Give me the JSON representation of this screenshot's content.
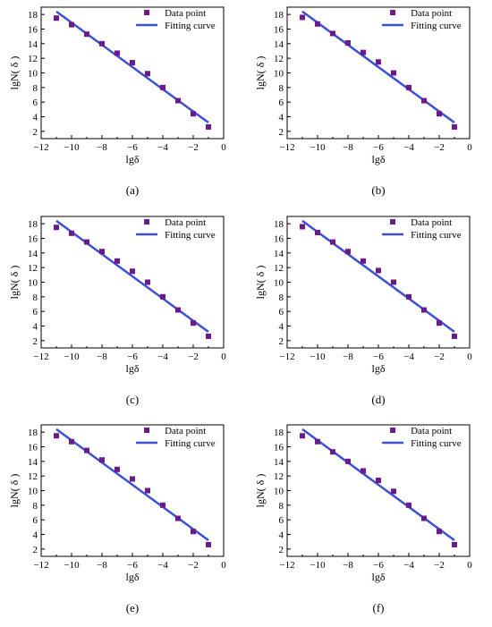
{
  "chart_data": [
    {
      "type": "scatter",
      "panel_label": "(a)",
      "xlabel": "lgδ",
      "ylabel": "lgN( δ )",
      "xlim": [
        -12,
        0
      ],
      "ylim": [
        1,
        19
      ],
      "x_ticks": [
        -12,
        -10,
        -8,
        -6,
        -4,
        -2,
        0
      ],
      "y_ticks": [
        2,
        4,
        6,
        8,
        10,
        12,
        14,
        16,
        18
      ],
      "legend_placement": "top-right",
      "series": [
        {
          "name": "Data point",
          "kind": "points",
          "color": "#6b1a8c",
          "x": [
            -11,
            -10,
            -9,
            -8,
            -7,
            -6,
            -5,
            -4,
            -3,
            -2,
            -1
          ],
          "y": [
            17.5,
            16.6,
            15.3,
            14.0,
            12.7,
            11.4,
            9.9,
            8.0,
            6.2,
            4.4,
            2.6
          ]
        },
        {
          "name": "Fitting curve",
          "kind": "line",
          "color": "#3b50d6",
          "x": [
            -11,
            -1
          ],
          "y": [
            18.4,
            3.2
          ]
        }
      ]
    },
    {
      "type": "scatter",
      "panel_label": "(b)",
      "xlabel": "lgδ",
      "ylabel": "lgN( δ )",
      "xlim": [
        -12,
        0
      ],
      "ylim": [
        1,
        19
      ],
      "x_ticks": [
        -12,
        -10,
        -8,
        -6,
        -4,
        -2,
        0
      ],
      "y_ticks": [
        2,
        4,
        6,
        8,
        10,
        12,
        14,
        16,
        18
      ],
      "legend_placement": "top-right",
      "series": [
        {
          "name": "Data point",
          "kind": "points",
          "color": "#6b1a8c",
          "x": [
            -11,
            -10,
            -9,
            -8,
            -7,
            -6,
            -5,
            -4,
            -3,
            -2,
            -1
          ],
          "y": [
            17.6,
            16.7,
            15.4,
            14.1,
            12.8,
            11.5,
            10.0,
            8.0,
            6.2,
            4.4,
            2.6
          ]
        },
        {
          "name": "Fitting curve",
          "kind": "line",
          "color": "#3b50d6",
          "x": [
            -11,
            -1
          ],
          "y": [
            18.4,
            3.2
          ]
        }
      ]
    },
    {
      "type": "scatter",
      "panel_label": "(c)",
      "xlabel": "lgδ",
      "ylabel": "lgN( δ )",
      "xlim": [
        -12,
        0
      ],
      "ylim": [
        1,
        19
      ],
      "x_ticks": [
        -12,
        -10,
        -8,
        -6,
        -4,
        -2,
        0
      ],
      "y_ticks": [
        2,
        4,
        6,
        8,
        10,
        12,
        14,
        16,
        18
      ],
      "legend_placement": "top-right",
      "series": [
        {
          "name": "Data point",
          "kind": "points",
          "color": "#6b1a8c",
          "x": [
            -11,
            -10,
            -9,
            -8,
            -7,
            -6,
            -5,
            -4,
            -3,
            -2,
            -1
          ],
          "y": [
            17.5,
            16.7,
            15.5,
            14.2,
            12.9,
            11.5,
            10.0,
            8.0,
            6.2,
            4.4,
            2.6
          ]
        },
        {
          "name": "Fitting curve",
          "kind": "line",
          "color": "#3b50d6",
          "x": [
            -11,
            -1
          ],
          "y": [
            18.4,
            3.2
          ]
        }
      ]
    },
    {
      "type": "scatter",
      "panel_label": "(d)",
      "xlabel": "lgδ",
      "ylabel": "lgN( δ )",
      "xlim": [
        -12,
        0
      ],
      "ylim": [
        1,
        19
      ],
      "x_ticks": [
        -12,
        -10,
        -8,
        -6,
        -4,
        -2,
        0
      ],
      "y_ticks": [
        2,
        4,
        6,
        8,
        10,
        12,
        14,
        16,
        18
      ],
      "legend_placement": "top-right",
      "series": [
        {
          "name": "Data point",
          "kind": "points",
          "color": "#6b1a8c",
          "x": [
            -11,
            -10,
            -9,
            -8,
            -7,
            -6,
            -5,
            -4,
            -3,
            -2,
            -1
          ],
          "y": [
            17.6,
            16.8,
            15.5,
            14.2,
            12.9,
            11.6,
            10.0,
            8.0,
            6.2,
            4.4,
            2.6
          ]
        },
        {
          "name": "Fitting curve",
          "kind": "line",
          "color": "#3b50d6",
          "x": [
            -11,
            -1
          ],
          "y": [
            18.4,
            3.2
          ]
        }
      ]
    },
    {
      "type": "scatter",
      "panel_label": "(e)",
      "xlabel": "lgδ",
      "ylabel": "lgN( δ )",
      "xlim": [
        -12,
        0
      ],
      "ylim": [
        1,
        19
      ],
      "x_ticks": [
        -12,
        -10,
        -8,
        -6,
        -4,
        -2,
        0
      ],
      "y_ticks": [
        2,
        4,
        6,
        8,
        10,
        12,
        14,
        16,
        18
      ],
      "legend_placement": "top-right",
      "series": [
        {
          "name": "Data point",
          "kind": "points",
          "color": "#6b1a8c",
          "x": [
            -11,
            -10,
            -9,
            -8,
            -7,
            -6,
            -5,
            -4,
            -3,
            -2,
            -1
          ],
          "y": [
            17.5,
            16.7,
            15.5,
            14.2,
            12.9,
            11.6,
            10.0,
            8.0,
            6.2,
            4.4,
            2.6
          ]
        },
        {
          "name": "Fitting curve",
          "kind": "line",
          "color": "#3b50d6",
          "x": [
            -11,
            -1
          ],
          "y": [
            18.4,
            3.2
          ]
        }
      ]
    },
    {
      "type": "scatter",
      "panel_label": "(f)",
      "xlabel": "lgδ",
      "ylabel": "lgN( δ )",
      "xlim": [
        -12,
        0
      ],
      "ylim": [
        1,
        19
      ],
      "x_ticks": [
        -12,
        -10,
        -8,
        -6,
        -4,
        -2,
        0
      ],
      "y_ticks": [
        2,
        4,
        6,
        8,
        10,
        12,
        14,
        16,
        18
      ],
      "legend_placement": "top-right",
      "series": [
        {
          "name": "Data point",
          "kind": "points",
          "color": "#6b1a8c",
          "x": [
            -11,
            -10,
            -9,
            -8,
            -7,
            -6,
            -5,
            -4,
            -3,
            -2,
            -1
          ],
          "y": [
            17.5,
            16.7,
            15.3,
            14.0,
            12.7,
            11.4,
            9.9,
            8.0,
            6.2,
            4.4,
            2.6
          ]
        },
        {
          "name": "Fitting curve",
          "kind": "line",
          "color": "#3b50d6",
          "x": [
            -11,
            -1
          ],
          "y": [
            18.4,
            3.2
          ]
        }
      ]
    }
  ]
}
